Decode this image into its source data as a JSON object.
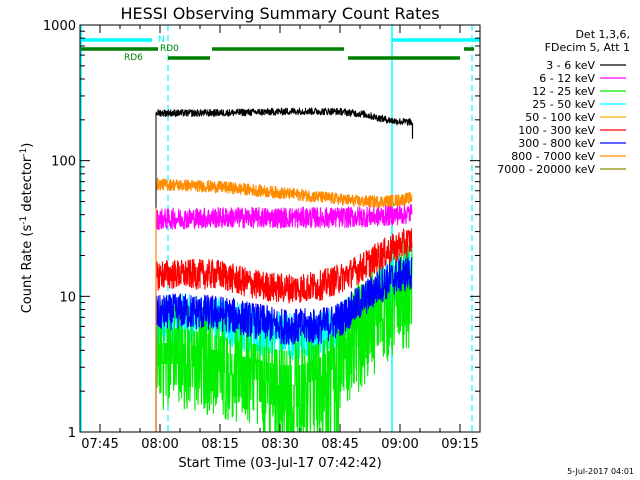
{
  "chart_data": {
    "type": "line",
    "title": "HESSI Observing Summary Count Rates",
    "xlabel": "Start Time (03-Jul-17 07:42:42)",
    "ylabel_main": "Count Rate (s",
    "ylabel_sup1": "-1",
    "ylabel_mid": " detector",
    "ylabel_sup2": "-1",
    "ylabel_end": ")",
    "y_scale": "log",
    "ylim": [
      1,
      1000
    ],
    "xlim_minutes": [
      -5,
      95
    ],
    "x_ticks": [
      {
        "m": 0,
        "label": "07:45"
      },
      {
        "m": 15,
        "label": "08:00"
      },
      {
        "m": 30,
        "label": "08:15"
      },
      {
        "m": 45,
        "label": "08:30"
      },
      {
        "m": 60,
        "label": "08:45"
      },
      {
        "m": 75,
        "label": "09:00"
      },
      {
        "m": 90,
        "label": "09:15"
      }
    ],
    "y_ticks": [
      {
        "v": 1,
        "label": "1"
      },
      {
        "v": 10,
        "label": "10"
      },
      {
        "v": 100,
        "label": "100"
      },
      {
        "v": 1000,
        "label": "1000"
      }
    ],
    "legend_header": [
      "Det 1,3,6,",
      "FDecim 5, Att 1"
    ],
    "legend_position": "right",
    "series": [
      {
        "name": "3 - 6 keV",
        "color": "#000000",
        "x": [
          14,
          15,
          20,
          30,
          40,
          50,
          60,
          66,
          70,
          74,
          78
        ],
        "y": [
          225,
          225,
          224,
          225,
          228,
          232,
          230,
          220,
          205,
          195,
          192
        ]
      },
      {
        "name": "6 - 12 keV",
        "color": "#ff00ff",
        "x": [
          14,
          15,
          20,
          30,
          40,
          50,
          60,
          65,
          70,
          74,
          78
        ],
        "y": [
          37,
          37,
          37.5,
          38,
          38,
          38,
          38,
          38.5,
          39,
          40,
          41
        ]
      },
      {
        "name": "12 - 25 keV",
        "color": "#00ee00",
        "x": [
          14,
          15,
          20,
          30,
          40,
          45,
          50,
          55,
          60,
          65,
          70,
          74,
          78
        ],
        "y": [
          3,
          3.2,
          3.2,
          2.8,
          2.4,
          2.2,
          2.2,
          2.5,
          3.2,
          4.5,
          6.5,
          8.5,
          9
        ]
      },
      {
        "name": "25 - 50 keV",
        "color": "#00ffff",
        "x": [
          14,
          15,
          20,
          30,
          40,
          50,
          55,
          60,
          65,
          70,
          74,
          78
        ],
        "y": [
          5,
          6,
          7,
          6.5,
          5.5,
          5,
          5,
          6,
          8,
          11,
          14,
          17
        ]
      },
      {
        "name": "50 - 100 keV",
        "color": "#ffaa00",
        "x": [],
        "y": []
      },
      {
        "name": "100 - 300 keV",
        "color": "#ff0000",
        "x": [
          14,
          15,
          20,
          30,
          35,
          40,
          45,
          50,
          55,
          60,
          65,
          70,
          74,
          78
        ],
        "y": [
          14,
          14.5,
          14.5,
          14.5,
          13,
          12,
          11.5,
          11.5,
          12,
          13.5,
          16,
          20,
          23,
          26
        ]
      },
      {
        "name": "300 - 800 keV",
        "color": "#0000ff",
        "x": [
          14,
          15,
          20,
          30,
          35,
          40,
          45,
          50,
          55,
          60,
          65,
          70,
          74,
          78
        ],
        "y": [
          7.5,
          7.5,
          7.8,
          7.5,
          7,
          6.5,
          6,
          6,
          6,
          6.8,
          9,
          12,
          14,
          15
        ]
      },
      {
        "name": "800 - 7000 keV",
        "color": "#ff8c00",
        "x": [
          14,
          15,
          20,
          30,
          40,
          50,
          60,
          65,
          70,
          74,
          78
        ],
        "y": [
          67,
          67,
          66,
          64,
          60,
          56,
          52,
          50,
          50,
          51,
          53
        ]
      },
      {
        "name": "7000 - 20000 keV",
        "color": "#8b8b00",
        "x": [],
        "y": []
      }
    ],
    "flags": [
      {
        "label": "N",
        "color": "#00ffff",
        "segments": [
          [
            -5,
            13
          ],
          [
            73,
            95
          ]
        ]
      },
      {
        "label": "RD0",
        "color": "#008000",
        "segments": [
          [
            -5,
            14.5
          ],
          [
            28,
            61
          ],
          [
            91,
            93.5
          ]
        ]
      },
      {
        "label": "RD6",
        "color": "#008000",
        "segments": [
          [
            17,
            27.5
          ],
          [
            62,
            90
          ]
        ]
      }
    ],
    "vlines_solid": [
      -5,
      73
    ],
    "vlines_dashed": [
      17,
      93
    ],
    "footer_date": "5-Jul-2017 04:01"
  }
}
